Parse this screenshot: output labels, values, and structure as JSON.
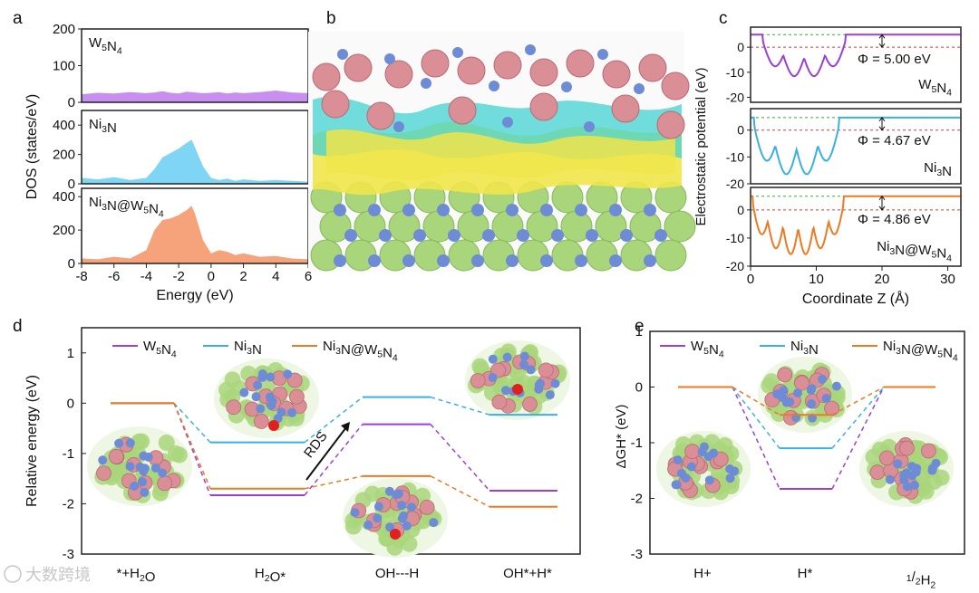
{
  "colors": {
    "w5n4": "#9b3fd6",
    "ni3n": "#3ab0e2",
    "ni3n_w5n4": "#ec7a22",
    "w5n4_fill": "#c98ff0",
    "ni3n_fill": "#7fd6f4",
    "ni3n_w5n4_fill": "#f6a27a",
    "vacuum_ref": "#2fb52f",
    "fermi_ref": "#d43a3a",
    "atom_w": "#d98f95",
    "atom_n": "#6e8bd6",
    "atom_ni": "#a9d67b",
    "atom_o": "#e02020",
    "iso_yellow": "#f0e54a",
    "iso_cyan": "#42d2d2"
  },
  "panels": {
    "a": "a",
    "b": "b",
    "c": "c",
    "d": "d",
    "e": "e"
  },
  "watermark": "大数跨境",
  "chart_data": [
    {
      "id": "a",
      "type": "area",
      "xlabel": "Energy (eV)",
      "ylabel": "DOS (states/eV)",
      "xlim": [
        -8,
        6
      ],
      "xticks": [
        "-8",
        "-6",
        "-4",
        "-2",
        "0",
        "2",
        "4",
        "6"
      ],
      "x": [
        -8,
        -7,
        -6,
        -5,
        -4,
        -3.5,
        -3,
        -2.5,
        -2,
        -1.5,
        -1.2,
        -1,
        -0.5,
        0,
        0.5,
        1,
        1.5,
        2,
        3,
        4,
        5,
        6
      ],
      "series": [
        {
          "name": "W5N4",
          "ylim": [
            0,
            200
          ],
          "yticks": [
            "0",
            "100",
            "200"
          ],
          "values": [
            22,
            26,
            24,
            28,
            25,
            27,
            30,
            26,
            24,
            29,
            28,
            27,
            25,
            26,
            28,
            24,
            27,
            25,
            28,
            32,
            27,
            25
          ]
        },
        {
          "name": "Ni3N",
          "ylim": [
            0,
            500
          ],
          "yticks": [
            "0",
            "200",
            "400"
          ],
          "values": [
            40,
            30,
            45,
            25,
            40,
            100,
            180,
            210,
            240,
            280,
            300,
            250,
            120,
            40,
            25,
            35,
            20,
            30,
            20,
            25,
            20,
            15
          ]
        },
        {
          "name": "Ni3N@W5N4",
          "ylim": [
            0,
            450
          ],
          "yticks": [
            "0",
            "200",
            "400"
          ],
          "values": [
            30,
            25,
            40,
            30,
            80,
            200,
            260,
            270,
            290,
            320,
            345,
            300,
            140,
            60,
            80,
            70,
            50,
            60,
            40,
            45,
            30,
            25
          ]
        }
      ]
    },
    {
      "id": "c",
      "type": "line",
      "xlabel": "Coordinate Z (Å)",
      "ylabel": "Electrostatic potential (eV)",
      "xlim": [
        0,
        32
      ],
      "xticks": [
        "0",
        "10",
        "20",
        "30"
      ],
      "series": [
        {
          "name": "W5N4",
          "label": "W5N4",
          "phi_label": "Φ = 5.00 eV",
          "ylim": [
            -22,
            8
          ],
          "yticks": [
            "0",
            "-10",
            "-20"
          ],
          "vacuum": 5.0,
          "fermi": 0.0,
          "wells": 4,
          "well_start": 1.8,
          "well_end": 14.5,
          "plateau": 5.0,
          "x": [
            0,
            1,
            2,
            3,
            4,
            5,
            6,
            7,
            8,
            9,
            10,
            11,
            12,
            13,
            14,
            15,
            16,
            20,
            25,
            30,
            32
          ],
          "values": [
            4,
            2,
            -4,
            -9,
            -12,
            -6,
            -10,
            -7,
            -12,
            -5,
            -9,
            -6,
            -12,
            -3,
            5,
            5,
            5,
            5,
            5,
            4.8,
            5
          ]
        },
        {
          "name": "Ni3N",
          "label": "Ni3N",
          "phi_label": "Φ = 4.67 eV",
          "ylim": [
            -20,
            8
          ],
          "yticks": [
            "0",
            "-10",
            "-20"
          ],
          "vacuum": 4.67,
          "fermi": 0.0,
          "wells": 4,
          "well_start": 0.5,
          "well_end": 13.5,
          "plateau": 4.67,
          "x": [
            0,
            1,
            2,
            3,
            4,
            5,
            6,
            7,
            8,
            9,
            10,
            11,
            12,
            13,
            14,
            16,
            20,
            25,
            30,
            32
          ],
          "values": [
            4.67,
            2,
            -12,
            -17,
            -5,
            -17,
            -5,
            -17,
            -5,
            -17,
            -5,
            -17,
            -6,
            -2,
            4.67,
            4.67,
            4.67,
            4.67,
            4.67,
            4.67
          ]
        },
        {
          "name": "Ni3N@W5N4",
          "label": "Ni3N@W5N4",
          "phi_label": "Φ = 4.86 eV",
          "ylim": [
            -20,
            8
          ],
          "yticks": [
            "0",
            "-10",
            "-20"
          ],
          "vacuum": 4.86,
          "fermi": 0.0,
          "wells": 6,
          "well_start": 0.3,
          "well_end": 14.2,
          "plateau": 4.86,
          "x": [
            0,
            1,
            2,
            3,
            4,
            5,
            6,
            7,
            8,
            9,
            10,
            11,
            12,
            13,
            14,
            15,
            20,
            25,
            30,
            32
          ],
          "values": [
            4.86,
            -5,
            -16,
            -8,
            -16,
            -8,
            -16,
            -8,
            -16,
            -8,
            -16,
            -8,
            -16,
            -6,
            2,
            4.86,
            4.86,
            4.86,
            4.86,
            4.86
          ]
        }
      ]
    },
    {
      "id": "d",
      "type": "line",
      "xlabel": "",
      "ylabel": "Relative energy (eV)",
      "ylim": [
        -3,
        1.5
      ],
      "yticks": [
        "1",
        "0",
        "-1",
        "-2",
        "-3"
      ],
      "categories": [
        "*+H2O",
        "H2O*",
        "OH---H",
        "OH*+H*"
      ],
      "series": [
        {
          "name": "W5N4",
          "values": [
            0.0,
            -1.83,
            -0.42,
            -1.74
          ]
        },
        {
          "name": "Ni3N",
          "values": [
            0.0,
            -0.78,
            0.12,
            -0.23
          ]
        },
        {
          "name": "Ni3N@W5N4",
          "values": [
            0.0,
            -1.7,
            -1.45,
            -2.06
          ]
        }
      ],
      "annotation": "RDS"
    },
    {
      "id": "e",
      "type": "line",
      "xlabel": "",
      "ylabel": "ΔGH* (eV)",
      "ylim": [
        -3,
        1
      ],
      "yticks": [
        "1",
        "0",
        "-1",
        "-2",
        "-3"
      ],
      "categories": [
        "H+",
        "H*",
        "1/2H2"
      ],
      "series": [
        {
          "name": "W5N4",
          "values": [
            0.0,
            -1.83,
            0.0
          ]
        },
        {
          "name": "Ni3N",
          "values": [
            0.0,
            -1.1,
            0.0
          ]
        },
        {
          "name": "Ni3N@W5N4",
          "values": [
            0.0,
            -0.5,
            0.0
          ]
        }
      ]
    }
  ]
}
